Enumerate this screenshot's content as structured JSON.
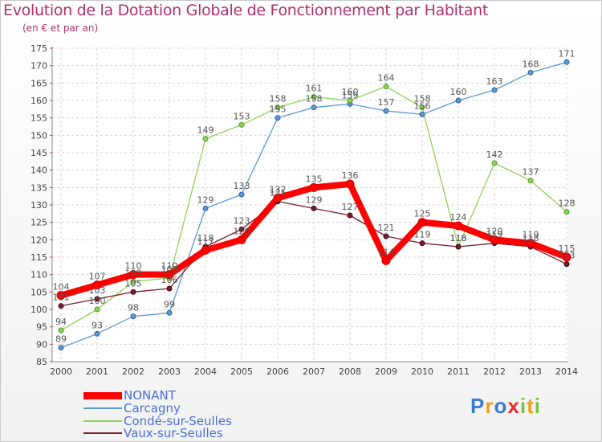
{
  "header": {
    "title": "Evolution de la Dotation Globale de Fonctionnement par Habitant",
    "subtitle": "(en € et par an)"
  },
  "chart_data": {
    "type": "line",
    "title": "Evolution de la Dotation Globale de Fonctionnement par Habitant",
    "ylabel": "(en € et par an)",
    "xlabel": "",
    "ylim": [
      85,
      175
    ],
    "yticks": [
      85,
      90,
      95,
      100,
      105,
      110,
      115,
      120,
      125,
      130,
      135,
      140,
      145,
      150,
      155,
      160,
      165,
      170,
      175
    ],
    "categories": [
      "2000",
      "2001",
      "2002",
      "2003",
      "2004",
      "2005",
      "2006",
      "2007",
      "2008",
      "2009",
      "2010",
      "2011",
      "2012",
      "2013",
      "2014"
    ],
    "grid": true,
    "series": [
      {
        "name": "Carcagny",
        "color": "#5b9bd5",
        "values": [
          89,
          93,
          98,
          99,
          129,
          133,
          155,
          158,
          159,
          157,
          156,
          160,
          163,
          168,
          171
        ]
      },
      {
        "name": "Condé-sur-Seulles",
        "color": "#8ed45a",
        "values": [
          94,
          100,
          108,
          109,
          149,
          153,
          158,
          161,
          160,
          164,
          158,
          118,
          142,
          137,
          128
        ]
      },
      {
        "name": "Vaux-sur-Seulles",
        "color": "#7a1e2c",
        "values": [
          101,
          103,
          105,
          106,
          118,
          123,
          131,
          129,
          127,
          121,
          119,
          118,
          119,
          118,
          113
        ]
      },
      {
        "name": "NONANT",
        "color": "#ff0000",
        "values": [
          104,
          107,
          110,
          110,
          117,
          120,
          132,
          135,
          136,
          114,
          125,
          124,
          120,
          119,
          115
        ]
      }
    ]
  },
  "legend": {
    "items": [
      {
        "label": "NONANT",
        "color": "#ff0000"
      },
      {
        "label": "Carcagny",
        "color": "#5b9bd5"
      },
      {
        "label": "Condé-sur-Seulles",
        "color": "#8ed45a"
      },
      {
        "label": "Vaux-sur-Seulles",
        "color": "#7a1e2c"
      }
    ]
  },
  "logo": {
    "letters": [
      "P",
      "r",
      "o",
      "x",
      "i",
      "t",
      "i"
    ],
    "colors": [
      "#3a7bd5",
      "#f0a020",
      "#3a7bd5",
      "#e83030",
      "#7cc242",
      "#f0a020",
      "#7cc242"
    ]
  }
}
